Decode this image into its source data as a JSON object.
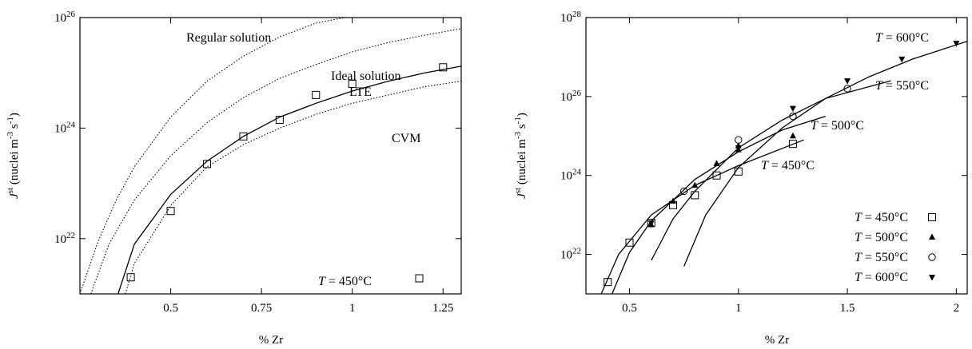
{
  "chart_data": [
    {
      "type": "scatter",
      "title": "",
      "xlabel": "% Zr",
      "ylabel": "J^st (nuclei m^-3 s^-1)",
      "y_scale": "log",
      "xlim": [
        0.25,
        1.3
      ],
      "ylim_log10": [
        21,
        26
      ],
      "x_ticks": [
        {
          "value": 0.5,
          "label": "0.5"
        },
        {
          "value": 0.75,
          "label": "0.75"
        },
        {
          "value": 1.0,
          "label": "1"
        },
        {
          "value": 1.25,
          "label": "1.25"
        }
      ],
      "y_ticks": [
        {
          "value": 22,
          "label": "10^22"
        },
        {
          "value": 24,
          "label": "10^24"
        },
        {
          "value": 26,
          "label": "10^26"
        }
      ],
      "series": [
        {
          "name": "T = 450°C",
          "marker": "square",
          "x": [
            0.39,
            0.5,
            0.6,
            0.7,
            0.8,
            0.9,
            1.0,
            1.25
          ],
          "y_log10": [
            21.3,
            22.5,
            23.35,
            23.85,
            24.15,
            24.6,
            24.8,
            25.1
          ]
        }
      ],
      "curves": [
        {
          "label": "Regular solution",
          "style": "dotted",
          "x": [
            0.25,
            0.3,
            0.35,
            0.4,
            0.5,
            0.6,
            0.7,
            0.8,
            0.9,
            0.98
          ],
          "y_log10": [
            21.0,
            21.95,
            22.7,
            23.3,
            24.2,
            24.85,
            25.3,
            25.65,
            25.9,
            26.0
          ]
        },
        {
          "label": "Ideal solution",
          "style": "dotted",
          "x": [
            0.28,
            0.33,
            0.4,
            0.5,
            0.6,
            0.7,
            0.8,
            0.9,
            1.0,
            1.1,
            1.2,
            1.3
          ],
          "y_log10": [
            21.0,
            21.9,
            22.7,
            23.5,
            24.1,
            24.55,
            24.9,
            25.15,
            25.38,
            25.55,
            25.68,
            25.8
          ]
        },
        {
          "label": "LTE",
          "style": "solid",
          "x": [
            0.355,
            0.4,
            0.5,
            0.6,
            0.7,
            0.8,
            0.9,
            1.0,
            1.1,
            1.2,
            1.3
          ],
          "y_log10": [
            21.0,
            21.9,
            22.8,
            23.4,
            23.85,
            24.2,
            24.45,
            24.67,
            24.85,
            25.0,
            25.12
          ]
        },
        {
          "label": "CVM",
          "style": "dotted",
          "x": [
            0.375,
            0.4,
            0.5,
            0.6,
            0.7,
            0.8,
            0.9,
            1.0,
            1.1,
            1.2,
            1.3
          ],
          "y_log10": [
            21.0,
            21.55,
            22.6,
            23.3,
            23.7,
            24.0,
            24.25,
            24.45,
            24.6,
            24.75,
            24.85
          ]
        }
      ],
      "annotations": [
        "Regular solution",
        "Ideal solution",
        "LTE",
        "CVM",
        "T = 450°C"
      ],
      "legend": "bottom-right",
      "grid": false
    },
    {
      "type": "scatter",
      "title": "",
      "xlabel": "% Zr",
      "ylabel": "J^st (nuclei m^-3 s^-1)",
      "y_scale": "log",
      "xlim": [
        0.3,
        2.05
      ],
      "ylim_log10": [
        21,
        28
      ],
      "x_ticks": [
        {
          "value": 0.5,
          "label": "0.5"
        },
        {
          "value": 1.0,
          "label": "1"
        },
        {
          "value": 1.5,
          "label": "1.5"
        },
        {
          "value": 2.0,
          "label": "2"
        }
      ],
      "y_ticks": [
        {
          "value": 22,
          "label": "10^22"
        },
        {
          "value": 24,
          "label": "10^24"
        },
        {
          "value": 26,
          "label": "10^26"
        },
        {
          "value": 28,
          "label": "10^28"
        }
      ],
      "series": [
        {
          "name": "T = 450°C",
          "marker": "square",
          "x": [
            0.4,
            0.5,
            0.6,
            0.7,
            0.8,
            0.9,
            1.0,
            1.25
          ],
          "y_log10": [
            21.3,
            22.3,
            22.8,
            23.25,
            23.5,
            24.0,
            24.1,
            24.8
          ]
        },
        {
          "name": "T = 500°C",
          "marker": "triangle-up",
          "x": [
            0.6,
            0.7,
            0.8,
            0.9,
            1.0,
            1.0,
            1.25
          ],
          "y_log10": [
            22.75,
            23.35,
            23.75,
            24.3,
            24.65,
            24.75,
            25.0
          ]
        },
        {
          "name": "T = 550°C",
          "marker": "circle",
          "x": [
            0.75,
            1.0,
            1.25,
            1.5
          ],
          "y_log10": [
            23.6,
            24.9,
            25.5,
            26.2
          ]
        },
        {
          "name": "T = 600°C",
          "marker": "triangle-down",
          "x": [
            0.6,
            1.0,
            1.25,
            1.5,
            1.75,
            2.0
          ],
          "y_log10": [
            22.8,
            24.7,
            25.7,
            26.4,
            26.95,
            27.35
          ]
        }
      ],
      "curves": [
        {
          "label": "T = 450°C",
          "style": "solid",
          "x": [
            0.37,
            0.45,
            0.6,
            0.8,
            1.0,
            1.3
          ],
          "y_log10": [
            21.0,
            22.0,
            23.0,
            23.75,
            24.25,
            24.9
          ]
        },
        {
          "label": "T = 500°C",
          "style": "solid",
          "x": [
            0.42,
            0.5,
            0.6,
            0.8,
            1.0,
            1.2,
            1.4
          ],
          "y_log10": [
            21.0,
            22.05,
            22.85,
            23.9,
            24.6,
            25.15,
            25.5
          ]
        },
        {
          "label": "T = 550°C",
          "style": "solid",
          "x": [
            0.6,
            0.7,
            0.8,
            1.0,
            1.2,
            1.4,
            1.7
          ],
          "y_log10": [
            21.85,
            22.9,
            23.6,
            24.7,
            25.4,
            25.95,
            26.4
          ]
        },
        {
          "label": "T = 600°C",
          "style": "solid",
          "x": [
            0.75,
            0.85,
            1.0,
            1.2,
            1.4,
            1.6,
            1.8,
            2.05
          ],
          "y_log10": [
            21.7,
            23.0,
            24.2,
            25.2,
            25.95,
            26.5,
            26.95,
            27.4
          ]
        }
      ],
      "annotations": [
        "T = 600°C",
        "T = 550°C",
        "T = 500°C",
        "T = 450°C"
      ],
      "legend": "bottom-right",
      "grid": false
    }
  ]
}
